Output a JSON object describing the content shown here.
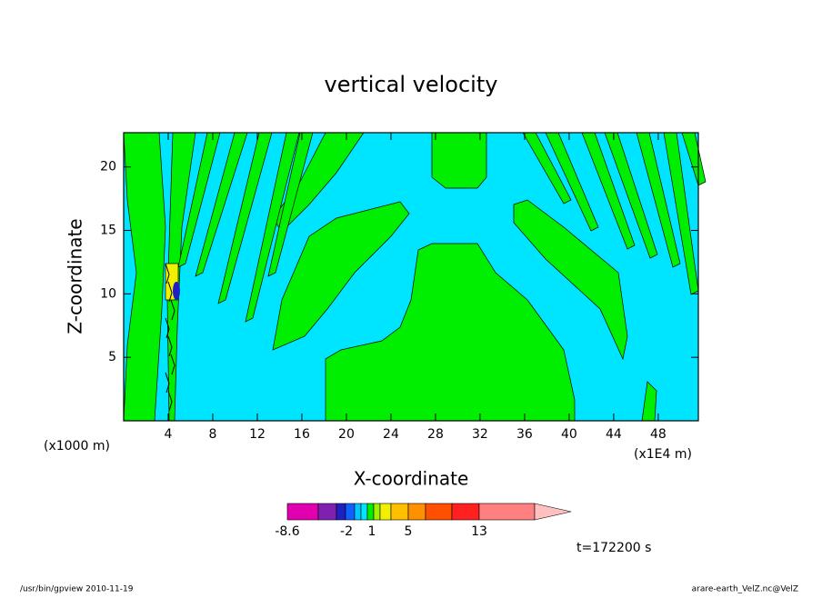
{
  "chart_data": {
    "type": "contour",
    "title": "vertical velocity",
    "xlabel": "X-coordinate",
    "ylabel": "Z-coordinate",
    "xunit": "(x1000 m)",
    "xunit2": "(x1E4 m)",
    "xlim": [
      0,
      51.6
    ],
    "xticks": [
      4,
      8,
      12,
      16,
      20,
      24,
      28,
      32,
      36,
      40,
      44,
      48
    ],
    "ylim": [
      0,
      22.7
    ],
    "yticks": [
      5,
      10,
      15,
      20
    ],
    "colorbar": {
      "colors": [
        "#e000b0",
        "#8020b0",
        "#2020c0",
        "#1060ff",
        "#00c8ff",
        "#00e5ff",
        "#00ee00",
        "#a0f000",
        "#f0f000",
        "#ffc000",
        "#ff9000",
        "#ff5000",
        "#ff2020",
        "#ff8080",
        "#ffc0c0"
      ],
      "ticks": [
        -8.6,
        -2,
        1,
        5,
        13
      ]
    },
    "annotation": "t=172200 s",
    "footer_left": "/usr/bin/gpview  2010-11-19",
    "footer_right": "arare-earth_VelZ.nc@VelZ"
  }
}
